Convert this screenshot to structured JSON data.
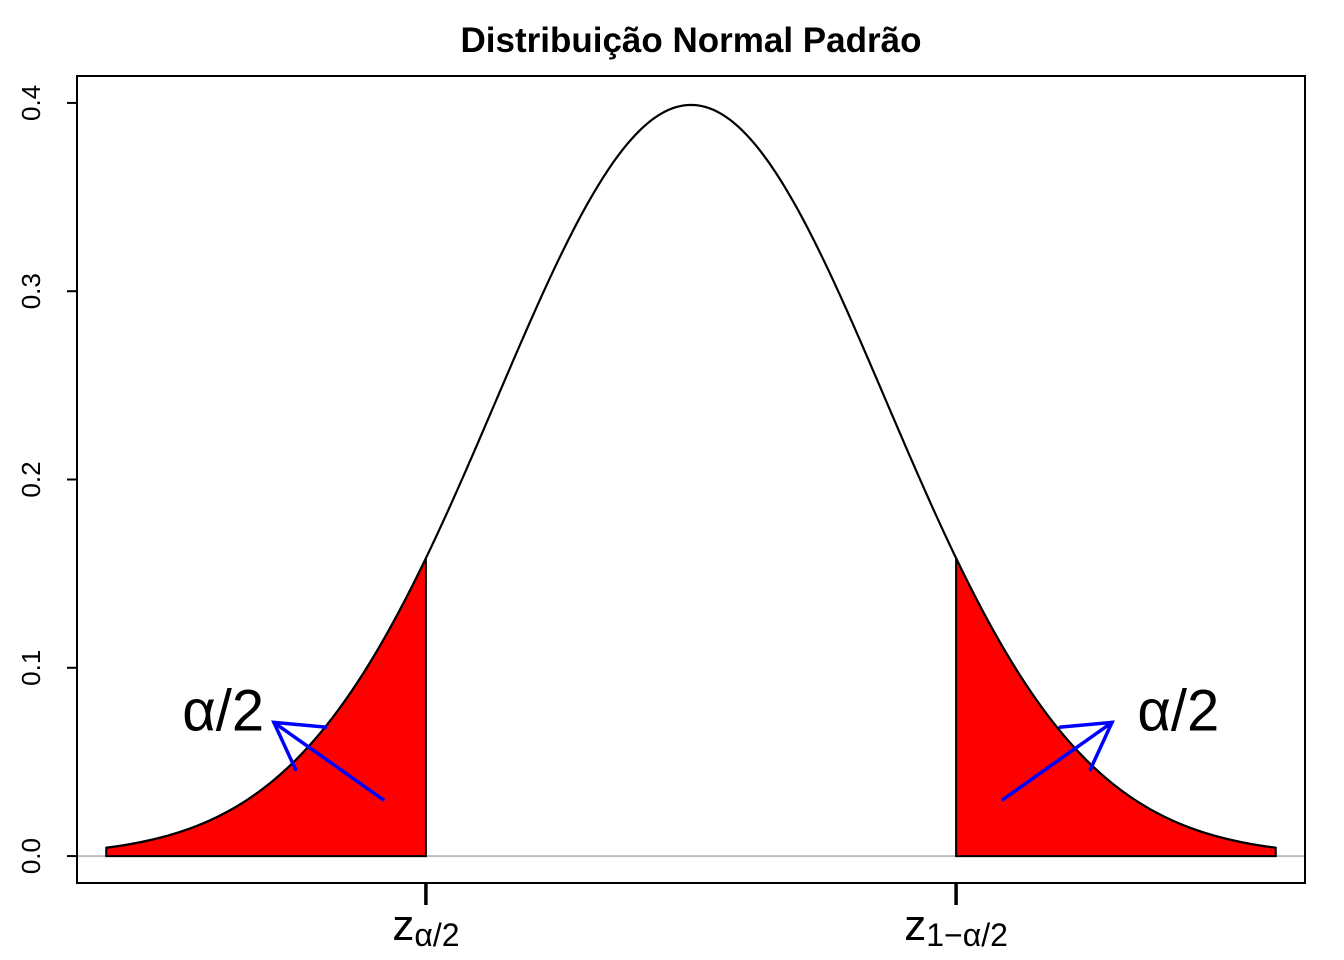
{
  "title": "Distribuição Normal Padrão",
  "chart_data": {
    "type": "area",
    "title": "Distribuição Normal Padrão",
    "xlabel": "",
    "ylabel": "",
    "xlim": [
      -3.15,
      3.15
    ],
    "ylim": [
      -0.0143,
      0.4143
    ],
    "x_range_plotted": [
      -3,
      3
    ],
    "y_ticks": [
      {
        "value": 0.0,
        "label": "0.0"
      },
      {
        "value": 0.1,
        "label": "0.1"
      },
      {
        "value": 0.2,
        "label": "0.2"
      },
      {
        "value": 0.3,
        "label": "0.3"
      },
      {
        "value": 0.4,
        "label": "0.4"
      }
    ],
    "x_ticks": [
      {
        "value": -1.36,
        "main": "z",
        "sub": "α/2"
      },
      {
        "value": 1.36,
        "main": "z",
        "sub": "1−α/2"
      }
    ],
    "series": [
      {
        "distribution": "normal",
        "mean": 0,
        "sd": 1,
        "color": "#000000"
      }
    ],
    "shaded_regions": [
      {
        "from": -3,
        "to": -1.36,
        "color": "#ff0000"
      },
      {
        "from": 1.36,
        "to": 3,
        "color": "#ff0000"
      }
    ],
    "baseline": {
      "y": 0,
      "color": "#bebebe"
    },
    "annotations": [
      {
        "text": "α/2",
        "x": -2.4,
        "y": 0.077
      },
      {
        "text": "α/2",
        "x": 2.5,
        "y": 0.077
      }
    ],
    "arrows": [
      {
        "from": [
          -1.58,
          0.03
        ],
        "to": [
          -2.14,
          0.071
        ],
        "color": "#0000ff"
      },
      {
        "from": [
          1.6,
          0.03
        ],
        "to": [
          2.16,
          0.071
        ],
        "color": "#0000ff"
      }
    ],
    "grid": false,
    "legend": "none"
  }
}
